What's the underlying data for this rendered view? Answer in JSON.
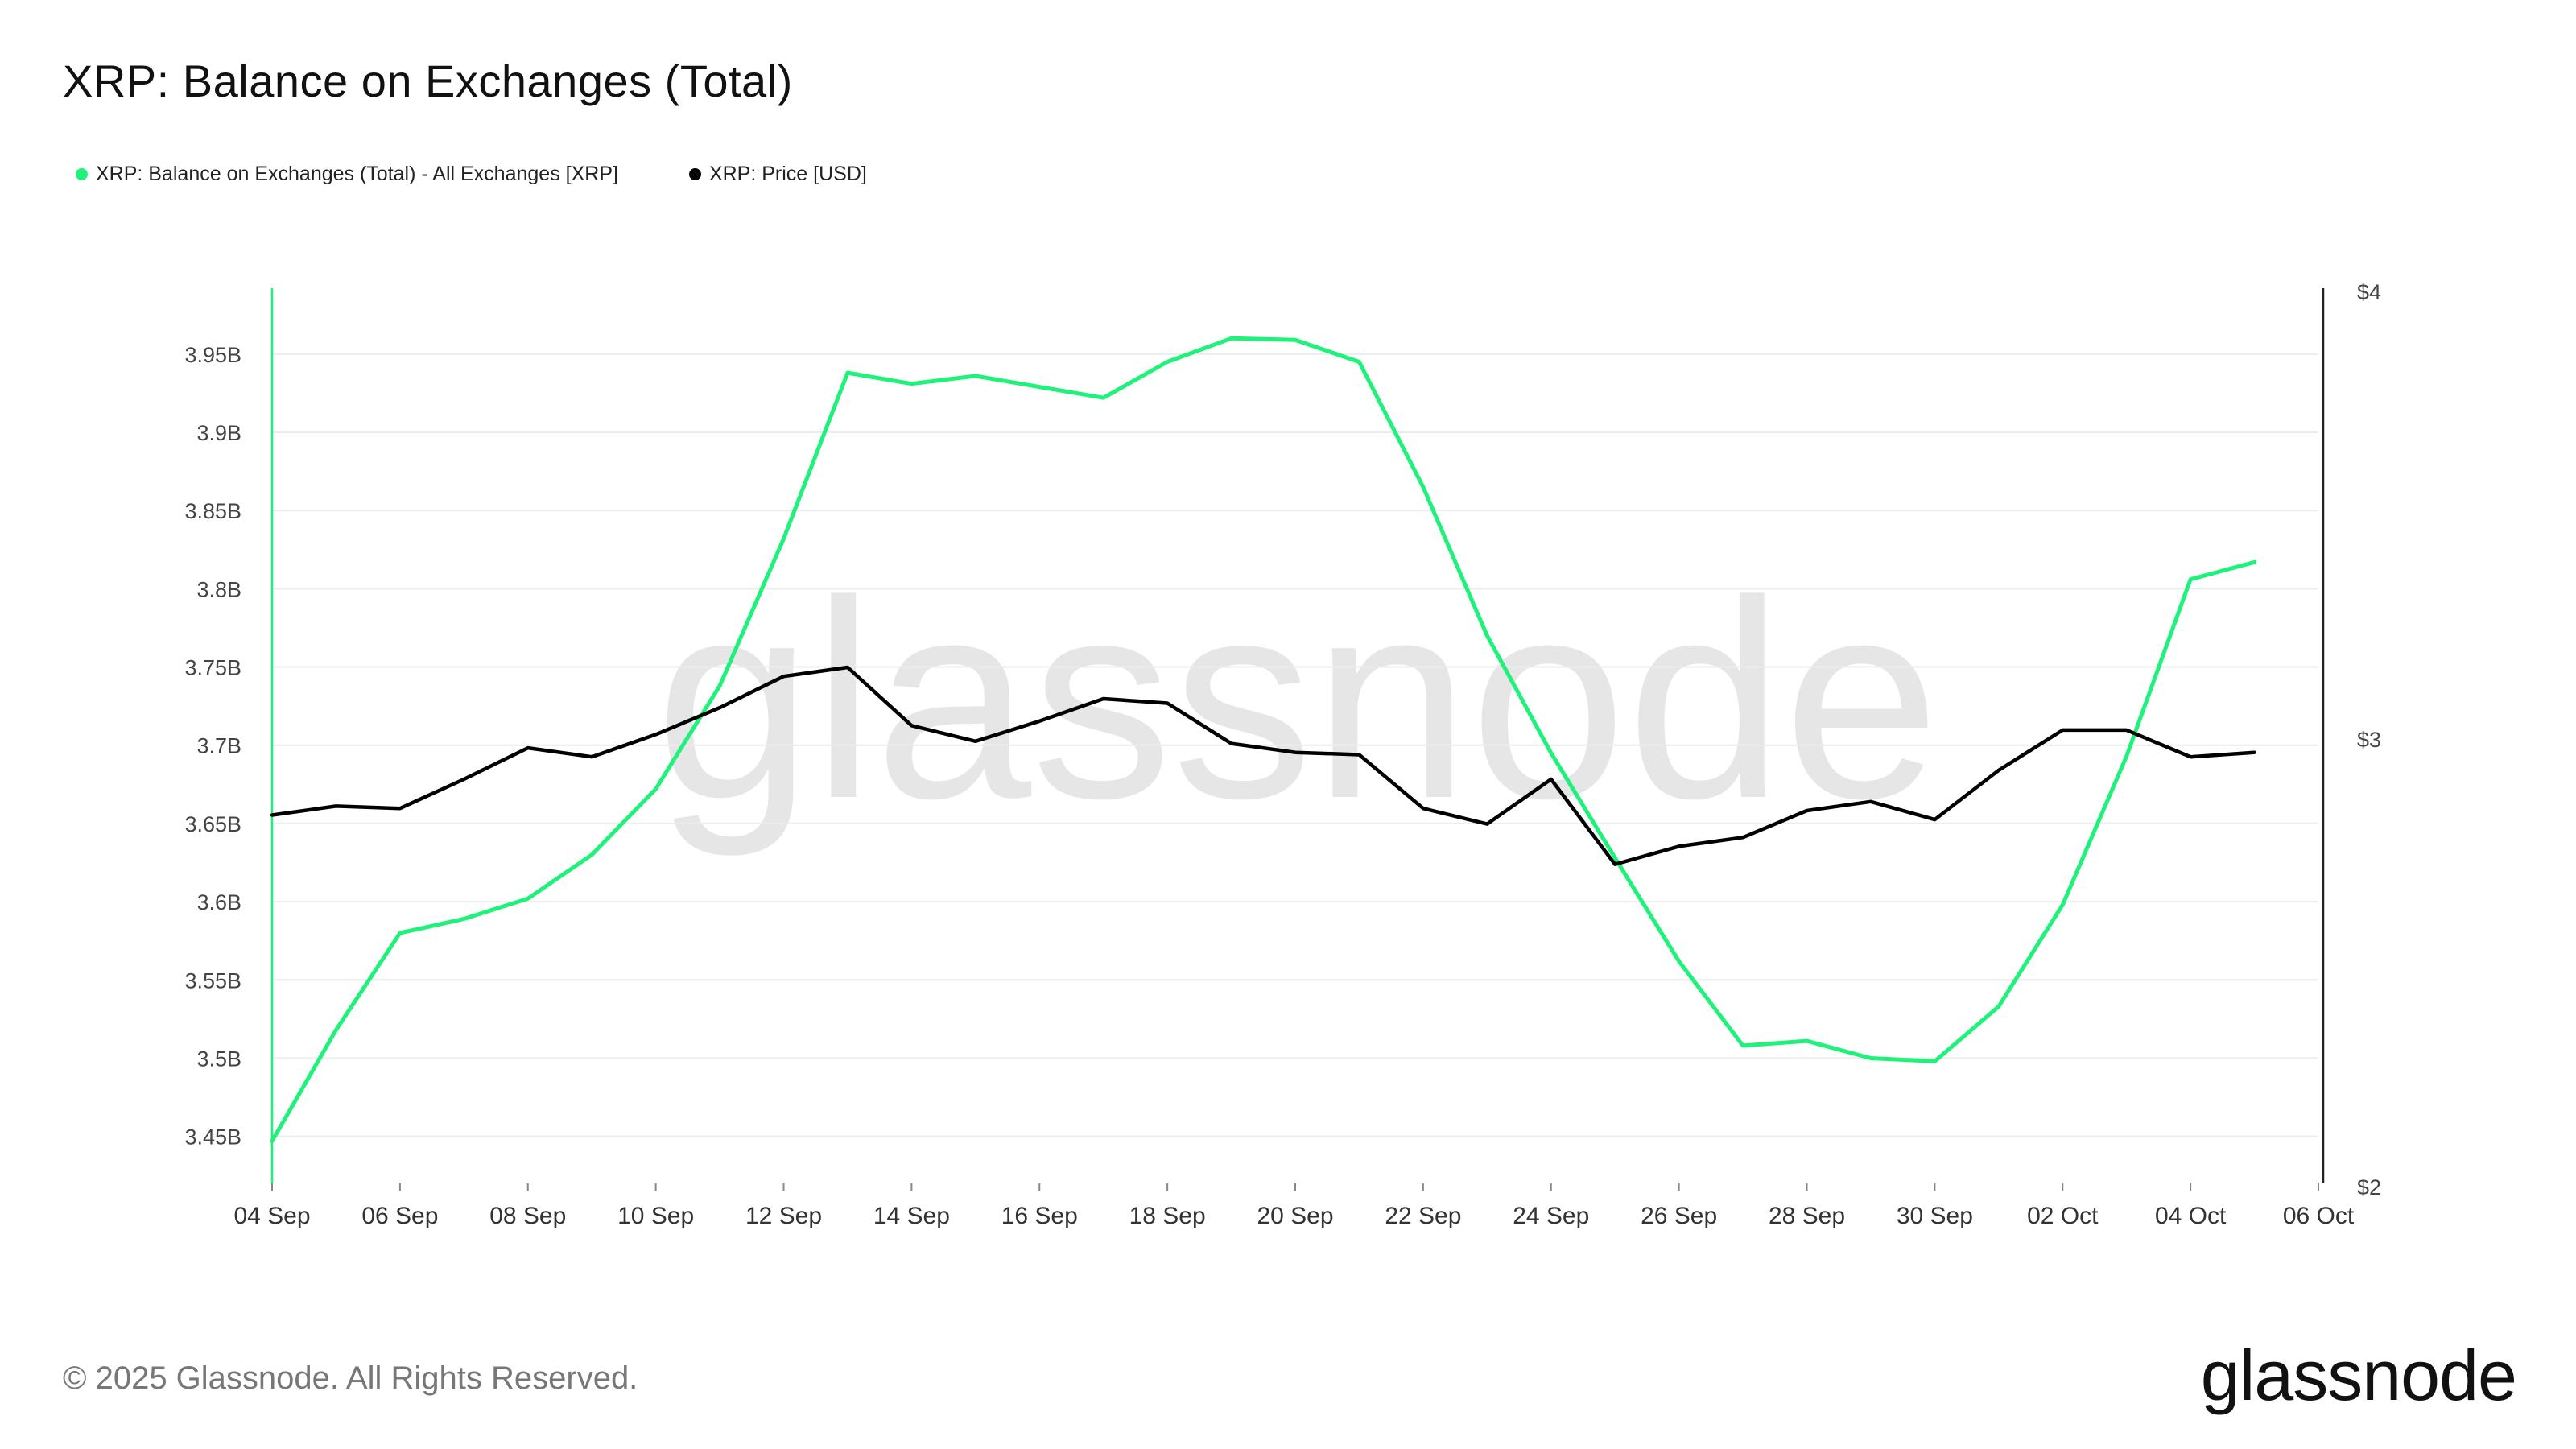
{
  "title": "XRP: Balance on Exchanges (Total)",
  "legend": [
    {
      "label": "XRP: Balance on Exchanges (Total) - All Exchanges [XRP]",
      "color": "#1ff27a"
    },
    {
      "label": "XRP: Price [USD]",
      "color": "#000000"
    }
  ],
  "footer": "© 2025 Glassnode. All Rights Reserved.",
  "brand": "glassnode",
  "watermark": "glassnode",
  "chart_data": {
    "type": "line",
    "title": "XRP: Balance on Exchanges (Total)",
    "x": [
      "04 Sep",
      "05 Sep",
      "06 Sep",
      "07 Sep",
      "08 Sep",
      "09 Sep",
      "10 Sep",
      "11 Sep",
      "12 Sep",
      "13 Sep",
      "14 Sep",
      "15 Sep",
      "16 Sep",
      "17 Sep",
      "18 Sep",
      "19 Sep",
      "20 Sep",
      "21 Sep",
      "22 Sep",
      "23 Sep",
      "24 Sep",
      "25 Sep",
      "26 Sep",
      "27 Sep",
      "28 Sep",
      "29 Sep",
      "30 Sep",
      "01 Oct",
      "02 Oct",
      "03 Oct",
      "04 Oct",
      "05 Oct"
    ],
    "x_ticks": [
      "04 Sep",
      "06 Sep",
      "08 Sep",
      "10 Sep",
      "12 Sep",
      "14 Sep",
      "16 Sep",
      "18 Sep",
      "20 Sep",
      "22 Sep",
      "24 Sep",
      "26 Sep",
      "28 Sep",
      "30 Sep",
      "02 Oct",
      "04 Oct",
      "06 Oct"
    ],
    "y_left": {
      "ticks": [
        "3.45B",
        "3.5B",
        "3.55B",
        "3.6B",
        "3.65B",
        "3.7B",
        "3.75B",
        "3.8B",
        "3.85B",
        "3.9B",
        "3.95B"
      ],
      "range": [
        3.42,
        3.99
      ]
    },
    "y_right": {
      "ticks": [
        "$2",
        "$3",
        "$4"
      ],
      "range": [
        2,
        4
      ]
    },
    "series": [
      {
        "name": "XRP: Balance on Exchanges (Total) - All Exchanges [XRP]",
        "axis": "left",
        "color": "#1ff27a",
        "values": [
          3.447,
          3.518,
          3.58,
          3.589,
          3.602,
          3.63,
          3.672,
          3.738,
          3.832,
          3.938,
          3.931,
          3.936,
          3.929,
          3.922,
          3.945,
          3.96,
          3.959,
          3.945,
          3.865,
          3.77,
          3.695,
          3.628,
          3.562,
          3.508,
          3.511,
          3.5,
          3.498,
          3.533,
          3.598,
          3.693,
          3.806,
          3.817
        ]
      },
      {
        "name": "XRP: Price [USD]",
        "axis": "right",
        "color": "#000000",
        "values": [
          2.83,
          2.85,
          2.845,
          2.91,
          2.98,
          2.96,
          3.01,
          3.07,
          3.14,
          3.16,
          3.03,
          2.995,
          3.04,
          3.09,
          3.08,
          2.99,
          2.97,
          2.965,
          2.845,
          2.81,
          2.91,
          2.72,
          2.76,
          2.78,
          2.84,
          2.86,
          2.82,
          2.93,
          3.02,
          3.02,
          2.96,
          2.97
        ]
      }
    ]
  }
}
